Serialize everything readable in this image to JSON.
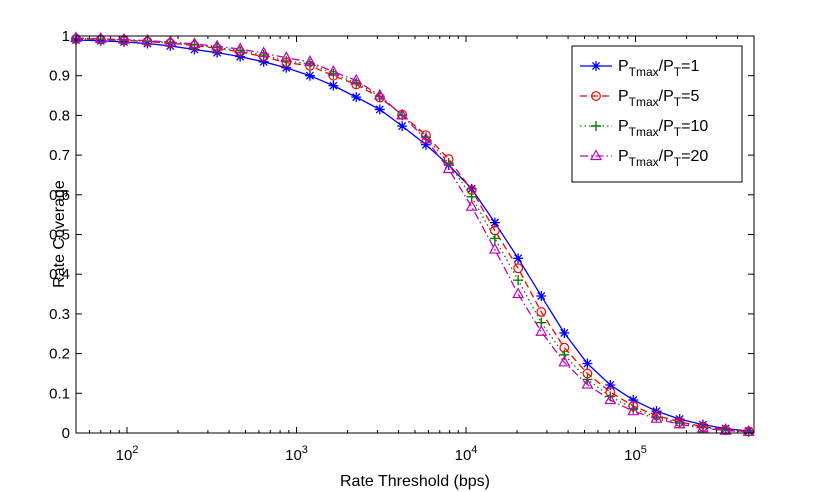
{
  "chart_data": {
    "type": "line",
    "xlabel": "Rate Threshold (bps)",
    "ylabel": "Rate Coverage",
    "xscale": "log",
    "xlim": [
      50,
      500000
    ],
    "ylim": [
      0,
      1
    ],
    "grid": false,
    "legend_position": "top-right",
    "x_ticks": [
      {
        "value": 100,
        "base": "10",
        "exp": "2"
      },
      {
        "value": 1000,
        "base": "10",
        "exp": "3"
      },
      {
        "value": 10000,
        "base": "10",
        "exp": "4"
      },
      {
        "value": 100000,
        "base": "10",
        "exp": "5"
      }
    ],
    "y_ticks": [
      {
        "value": 0,
        "label": "0"
      },
      {
        "value": 0.1,
        "label": "0.1"
      },
      {
        "value": 0.2,
        "label": "0.2"
      },
      {
        "value": 0.3,
        "label": "0.3"
      },
      {
        "value": 0.4,
        "label": "0.4"
      },
      {
        "value": 0.5,
        "label": "0.5"
      },
      {
        "value": 0.6,
        "label": "0.6"
      },
      {
        "value": 0.7,
        "label": "0.7"
      },
      {
        "value": 0.8,
        "label": "0.8"
      },
      {
        "value": 0.9,
        "label": "0.9"
      },
      {
        "value": 1,
        "label": "1"
      }
    ],
    "x": [
      50,
      70,
      96,
      132,
      180,
      250,
      340,
      465,
      640,
      870,
      1200,
      1650,
      2250,
      3100,
      4200,
      5800,
      7900,
      10800,
      14800,
      20300,
      27800,
      38000,
      52000,
      71000,
      97000,
      133000,
      182000,
      250000,
      340000,
      465000
    ],
    "series": [
      {
        "name": "P_Tmax/P_T=1",
        "legend": {
          "p1": "P",
          "s1": "Tmax",
          "sep": "/",
          "p2": "P",
          "s2": "T",
          "suffix": "=1"
        },
        "color": "#0000ff",
        "marker": "asterisk",
        "line_style": "solid",
        "values": [
          0.99,
          0.988,
          0.985,
          0.981,
          0.975,
          0.966,
          0.958,
          0.948,
          0.935,
          0.92,
          0.9,
          0.875,
          0.846,
          0.815,
          0.773,
          0.726,
          0.675,
          0.615,
          0.53,
          0.44,
          0.345,
          0.252,
          0.175,
          0.121,
          0.083,
          0.055,
          0.035,
          0.021,
          0.011,
          0.005
        ]
      },
      {
        "name": "P_Tmax/P_T=5",
        "legend": {
          "p1": "P",
          "s1": "Tmax",
          "sep": "/",
          "p2": "P",
          "s2": "T",
          "suffix": "=5"
        },
        "color": "#ff0000",
        "marker": "circle",
        "line_style": "dashed",
        "values": [
          0.993,
          0.991,
          0.989,
          0.986,
          0.982,
          0.976,
          0.969,
          0.96,
          0.948,
          0.933,
          0.925,
          0.9,
          0.878,
          0.845,
          0.802,
          0.75,
          0.69,
          0.612,
          0.51,
          0.415,
          0.305,
          0.215,
          0.15,
          0.103,
          0.068,
          0.044,
          0.028,
          0.016,
          0.008,
          0.004
        ]
      },
      {
        "name": "P_Tmax/P_T=10",
        "legend": {
          "p1": "P",
          "s1": "Tmax",
          "sep": "/",
          "p2": "P",
          "s2": "T",
          "suffix": "=10"
        },
        "color": "#008000",
        "marker": "plus",
        "line_style": "dotted",
        "values": [
          0.994,
          0.992,
          0.99,
          0.987,
          0.983,
          0.978,
          0.971,
          0.963,
          0.952,
          0.937,
          0.93,
          0.905,
          0.882,
          0.848,
          0.8,
          0.745,
          0.68,
          0.595,
          0.49,
          0.385,
          0.278,
          0.197,
          0.135,
          0.092,
          0.061,
          0.04,
          0.025,
          0.014,
          0.007,
          0.003
        ]
      },
      {
        "name": "P_Tmax/P_T=20",
        "legend": {
          "p1": "P",
          "s1": "Tmax",
          "sep": "/",
          "p2": "P",
          "s2": "T",
          "suffix": "=20"
        },
        "color": "#bf00bf",
        "marker": "triangle",
        "line_style": "dashdot",
        "values": [
          0.995,
          0.993,
          0.991,
          0.988,
          0.985,
          0.98,
          0.974,
          0.967,
          0.957,
          0.945,
          0.935,
          0.91,
          0.888,
          0.85,
          0.8,
          0.74,
          0.665,
          0.57,
          0.462,
          0.35,
          0.255,
          0.178,
          0.122,
          0.083,
          0.055,
          0.036,
          0.022,
          0.012,
          0.006,
          0.003
        ]
      }
    ]
  }
}
